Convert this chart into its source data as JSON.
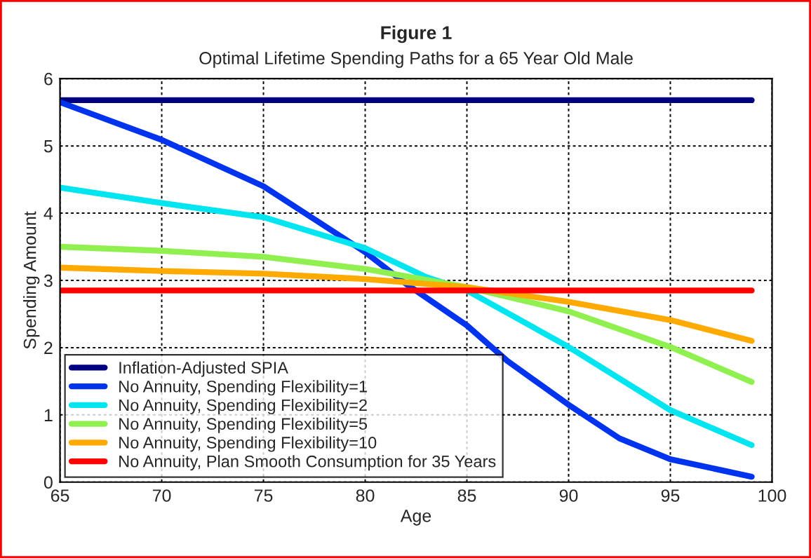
{
  "chart_data": {
    "type": "line",
    "title": "Figure 1",
    "subtitle": "Optimal Lifetime Spending Paths for a 65 Year Old Male",
    "xlabel": "Age",
    "ylabel": "Spending Amount",
    "x": [
      65,
      70,
      75,
      80,
      85,
      90,
      95,
      99
    ],
    "series": [
      {
        "name": "Inflation-Adjusted SPIA",
        "color": "#000080",
        "values": [
          5.68,
          5.68,
          5.68,
          5.68,
          5.68,
          5.68,
          5.68,
          5.68
        ]
      },
      {
        "name": "No Annuity, Spending Flexibility=1",
        "color": "#0033ee",
        "x": [
          65,
          70,
          75,
          80,
          82,
          85,
          87,
          90,
          92.5,
          95,
          99
        ],
        "values": [
          5.65,
          5.09,
          4.4,
          3.42,
          2.95,
          2.33,
          1.8,
          1.15,
          0.65,
          0.34,
          0.08
        ]
      },
      {
        "name": "No Annuity, Spending Flexibility=2",
        "color": "#00e5f0",
        "x": [
          65,
          70,
          75,
          80,
          83,
          85,
          90,
          95,
          99
        ],
        "values": [
          4.38,
          4.15,
          3.94,
          3.48,
          3.05,
          2.85,
          2.01,
          1.07,
          0.55
        ]
      },
      {
        "name": "No Annuity, Spending Flexibility=5",
        "color": "#90f050",
        "values": [
          3.5,
          3.44,
          3.35,
          3.17,
          2.9,
          2.54,
          2.01,
          1.49
        ]
      },
      {
        "name": "No Annuity, Spending Flexibility=10",
        "color": "#ffaa00",
        "values": [
          3.19,
          3.14,
          3.1,
          3.02,
          2.9,
          2.68,
          2.41,
          2.1
        ]
      },
      {
        "name": "No Annuity, Plan Smooth Consumption for 35 Years",
        "color": "#ff0000",
        "values": [
          2.85,
          2.85,
          2.85,
          2.85,
          2.85,
          2.85,
          2.85,
          2.85
        ]
      }
    ],
    "xlim": [
      65,
      100
    ],
    "xticks": [
      65,
      70,
      75,
      80,
      85,
      90,
      95,
      100
    ],
    "ylim": [
      0,
      6
    ],
    "yticks": [
      0,
      1,
      2,
      3,
      4,
      5,
      6
    ],
    "grid": true,
    "legend": "bottom left",
    "marker": "none",
    "line_style": "solid"
  }
}
